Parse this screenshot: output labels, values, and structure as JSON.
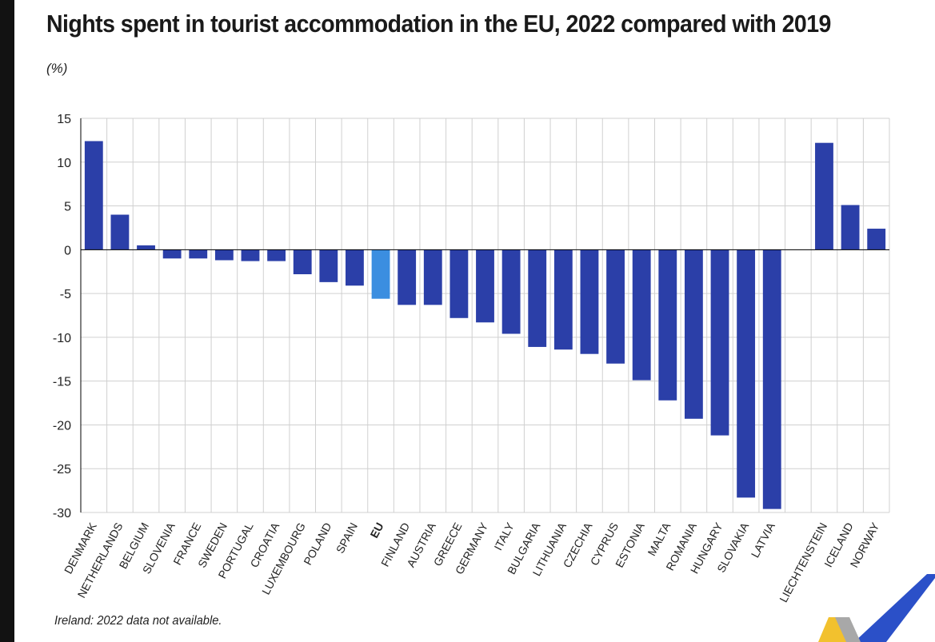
{
  "title": "Nights spent in tourist accommodation in the EU, 2022 compared with 2019",
  "unit": "(%)",
  "footnote": "Ireland: 2022 data not available.",
  "colors": {
    "bar": "#2b3fa8",
    "eu_bar": "#3b8ee0",
    "grid": "#d0d0d0",
    "axis": "#000000"
  },
  "chart_data": {
    "type": "bar",
    "ylim": [
      -30,
      15
    ],
    "yticks": [
      15,
      10,
      5,
      0,
      -5,
      -10,
      -15,
      -20,
      -25,
      -30
    ],
    "grid": true,
    "highlight": "EU",
    "categories": [
      "DENMARK",
      "NETHERLANDS",
      "BELGIUM",
      "SLOVENIA",
      "FRANCE",
      "SWEDEN",
      "PORTUGAL",
      "CROATIA",
      "LUXEMBOURG",
      "POLAND",
      "SPAIN",
      "EU",
      "FINLAND",
      "AUSTRIA",
      "GREECE",
      "GERMANY",
      "ITALY",
      "BULGARIA",
      "LITHUANIA",
      "CZECHIA",
      "CYPRUS",
      "ESTONIA",
      "MALTA",
      "ROMANIA",
      "HUNGARY",
      "SLOVAKIA",
      "LATVIA",
      "",
      "LIECHTENSTEIN",
      "ICELAND",
      "NORWAY"
    ],
    "values": [
      12.4,
      4.0,
      0.5,
      -1.0,
      -1.0,
      -1.2,
      -1.3,
      -1.3,
      -2.8,
      -3.7,
      -4.1,
      -5.6,
      -6.3,
      -6.3,
      -7.8,
      -8.3,
      -9.6,
      -11.1,
      -11.4,
      -11.9,
      -13.0,
      -14.9,
      -17.2,
      -19.3,
      -21.2,
      -28.3,
      -29.6,
      null,
      12.2,
      5.1,
      2.4
    ]
  }
}
